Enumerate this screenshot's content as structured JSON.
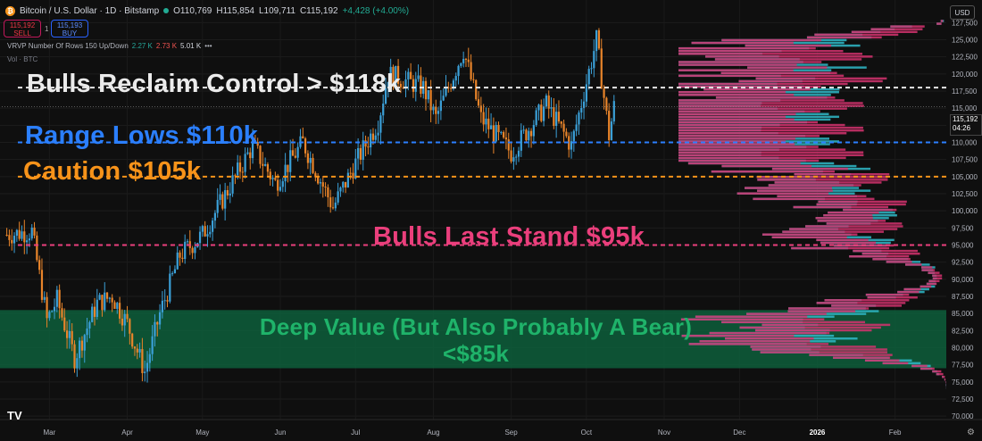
{
  "header": {
    "coin_glyph": "₿",
    "symbol": "Bitcoin / U.S. Dollar · 1D · Bitstamp",
    "open": "O110,769",
    "high": "H115,854",
    "low": "L109,711",
    "close": "C115,192",
    "change": "+4,428 (+4.00%)"
  },
  "trade": {
    "sell_price": "115,192",
    "sell_label": "SELL",
    "buy_price": "115,193",
    "buy_label": "BUY",
    "spread": "1"
  },
  "vrvp": {
    "label": "VRVP Number Of Rows 150 Up/Down",
    "up": "2.27 K",
    "down": "2.73 K",
    "total": "5.01 K",
    "menu": "•••"
  },
  "vol_label": "Vol · BTC",
  "currency": "USD",
  "price_tag": {
    "price": "115,192",
    "countdown": "04:26"
  },
  "annotations": {
    "bulls_reclaim": "Bulls Reclaim Control > $118k",
    "range_lows": "Range Lows $110k",
    "caution": "Caution $105k",
    "last_stand": "Bulls Last Stand $95k",
    "deep_value": "Deep Value (But Also Probably A Bear) <$85k"
  },
  "logo": "TV",
  "settings_icon": "⚙",
  "colors": {
    "up": "#3ba0d8",
    "down": "#e8842a",
    "profile_up": "#2fb8c8",
    "profile_down": "#d4336f",
    "zone": "#0e5c3a",
    "white_line": "#e6e6e6",
    "blue_line": "#2b7fff",
    "orange_line": "#f7931a",
    "pink_line": "#ea3f7c"
  },
  "chart_data": {
    "type": "candlestick",
    "x_ticks": [
      "Mar",
      "Apr",
      "May",
      "Jun",
      "Jul",
      "Aug",
      "Sep",
      "Oct",
      "Nov",
      "Dec",
      "2026",
      "Feb"
    ],
    "y_ticks": [
      70000,
      72500,
      75000,
      77500,
      80000,
      82500,
      85000,
      87500,
      90000,
      92500,
      95000,
      97500,
      100000,
      102500,
      105000,
      107500,
      110000,
      112500,
      115000,
      117500,
      120000,
      122500,
      125000,
      127500
    ],
    "ylim": [
      69500,
      129500
    ],
    "levels": [
      118000,
      110000,
      105000,
      95000
    ],
    "zone": [
      77000,
      85500
    ],
    "price_path": [
      [
        "2025-02-12",
        96500
      ],
      [
        "2025-02-22",
        97000
      ],
      [
        "2025-02-28",
        84000
      ],
      [
        "2025-03-04",
        87000
      ],
      [
        "2025-03-11",
        78500
      ],
      [
        "2025-03-20",
        86500
      ],
      [
        "2025-03-26",
        87500
      ],
      [
        "2025-04-01",
        83500
      ],
      [
        "2025-04-08",
        76500
      ],
      [
        "2025-04-14",
        85000
      ],
      [
        "2025-04-22",
        93500
      ],
      [
        "2025-05-01",
        96500
      ],
      [
        "2025-05-08",
        101000
      ],
      [
        "2025-05-21",
        109500
      ],
      [
        "2025-05-30",
        104000
      ],
      [
        "2025-06-10",
        110000
      ],
      [
        "2025-06-22",
        100500
      ],
      [
        "2025-07-01",
        107000
      ],
      [
        "2025-07-10",
        113000
      ],
      [
        "2025-07-14",
        120000
      ],
      [
        "2025-07-28",
        118000
      ],
      [
        "2025-08-02",
        113500
      ],
      [
        "2025-08-13",
        123500
      ],
      [
        "2025-08-20",
        113500
      ],
      [
        "2025-09-01",
        108500
      ],
      [
        "2025-09-15",
        115500
      ],
      [
        "2025-09-25",
        109500
      ],
      [
        "2025-10-05",
        125000
      ],
      [
        "2025-10-10",
        111000
      ],
      [
        "2025-10-12",
        115192
      ]
    ],
    "volume_profile": {
      "up_total": "2.27K",
      "down_total": "2.73K",
      "rows": 150
    }
  }
}
